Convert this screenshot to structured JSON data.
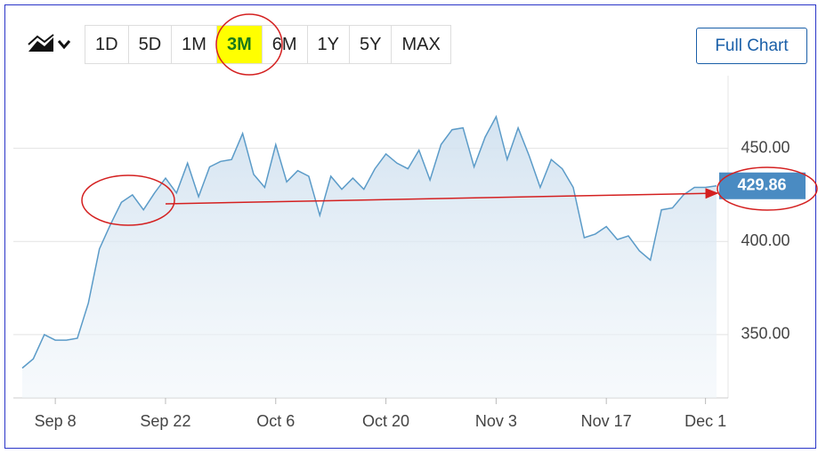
{
  "toolbar": {
    "ranges": [
      "1D",
      "5D",
      "1M",
      "3M",
      "6M",
      "1Y",
      "5Y",
      "MAX"
    ],
    "full_chart": "Full Chart"
  },
  "chart_data": {
    "type": "area",
    "categories": [
      null,
      null,
      null,
      "Sep 8",
      null,
      null,
      null,
      null,
      null,
      null,
      null,
      null,
      null,
      "Sep 22",
      null,
      null,
      null,
      null,
      null,
      null,
      null,
      null,
      null,
      "Oct 6",
      null,
      null,
      null,
      null,
      null,
      null,
      null,
      null,
      null,
      "Oct 20",
      null,
      null,
      null,
      null,
      null,
      null,
      null,
      null,
      null,
      "Nov 3",
      null,
      null,
      null,
      null,
      null,
      null,
      null,
      null,
      null,
      "Nov 17",
      null,
      null,
      null,
      null,
      null,
      null,
      null,
      null,
      "Dec 1",
      null
    ],
    "series": [
      {
        "color": "#5b9bc8",
        "values": [
          332,
          337,
          350,
          347,
          347,
          348,
          367,
          396,
          409,
          421,
          425,
          417,
          426,
          434,
          426,
          442,
          424,
          440,
          443,
          444,
          458,
          436,
          429,
          452,
          432,
          438,
          435,
          414,
          435,
          428,
          434,
          428,
          439,
          447,
          442,
          439,
          449,
          433,
          452,
          460,
          461,
          440,
          456,
          467,
          444,
          461,
          446,
          429,
          444,
          439,
          429,
          402,
          404,
          408,
          401,
          403,
          395,
          390,
          417,
          418,
          425,
          429,
          429,
          429.86
        ]
      }
    ],
    "ylim": [
      316,
      489
    ],
    "yticks": [
      {
        "value": 350,
        "label": "350.00"
      },
      {
        "value": 400,
        "label": "400.00"
      },
      {
        "value": 450,
        "label": "450.00"
      }
    ],
    "grid": true
  }
}
